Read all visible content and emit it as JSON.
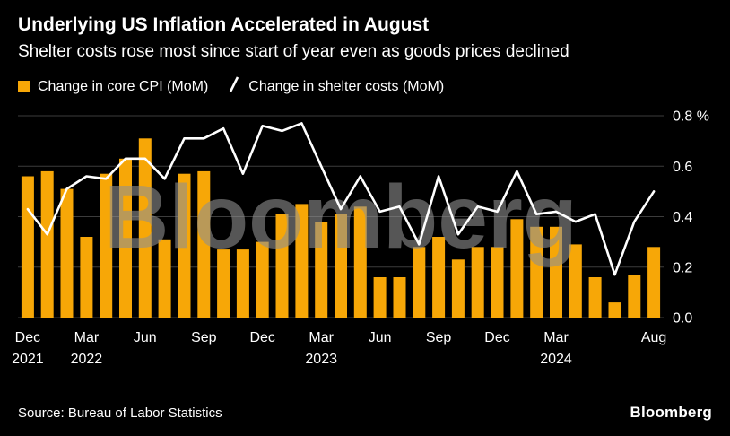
{
  "header": {
    "title": "Underlying US Inflation Accelerated in August",
    "subtitle": "Shelter costs rose most since start of year even as goods prices declined"
  },
  "legend": {
    "bars_label": "Change in core CPI (MoM)",
    "line_label": "Change in shelter costs (MoM)"
  },
  "watermark": "Bloomberg",
  "footer": {
    "source": "Source: Bureau of Labor Statistics",
    "brand": "Bloomberg"
  },
  "colors": {
    "background": "#000000",
    "bar": "#F7A707",
    "line": "#FFFFFF",
    "grid": "#3C3C3C",
    "text": "#FFFFFF",
    "watermark": "#8F8F8F"
  },
  "chart_data": {
    "type": "bar+line",
    "title": "Underlying US Inflation Accelerated in August",
    "x": [
      "Dec 2021",
      "Jan 2022",
      "Feb 2022",
      "Mar 2022",
      "Apr 2022",
      "May 2022",
      "Jun 2022",
      "Jul 2022",
      "Aug 2022",
      "Sep 2022",
      "Oct 2022",
      "Nov 2022",
      "Dec 2022",
      "Jan 2023",
      "Feb 2023",
      "Mar 2023",
      "Apr 2023",
      "May 2023",
      "Jun 2023",
      "Jul 2023",
      "Aug 2023",
      "Sep 2023",
      "Oct 2023",
      "Nov 2023",
      "Dec 2023",
      "Jan 2024",
      "Feb 2024",
      "Mar 2024",
      "Apr 2024",
      "May 2024",
      "Jun 2024",
      "Jul 2024",
      "Aug 2024"
    ],
    "series": [
      {
        "name": "Change in core CPI (MoM)",
        "type": "bar",
        "values": [
          0.56,
          0.58,
          0.51,
          0.32,
          0.57,
          0.63,
          0.71,
          0.31,
          0.57,
          0.58,
          0.27,
          0.27,
          0.3,
          0.41,
          0.45,
          0.38,
          0.41,
          0.44,
          0.16,
          0.16,
          0.28,
          0.32,
          0.23,
          0.28,
          0.28,
          0.39,
          0.36,
          0.36,
          0.29,
          0.16,
          0.06,
          0.17,
          0.28
        ]
      },
      {
        "name": "Change in shelter costs (MoM)",
        "type": "line",
        "values": [
          0.43,
          0.33,
          0.51,
          0.56,
          0.55,
          0.63,
          0.63,
          0.55,
          0.71,
          0.71,
          0.75,
          0.57,
          0.76,
          0.74,
          0.77,
          0.6,
          0.43,
          0.56,
          0.42,
          0.44,
          0.29,
          0.56,
          0.33,
          0.44,
          0.42,
          0.58,
          0.41,
          0.42,
          0.38,
          0.41,
          0.17,
          0.38,
          0.5
        ]
      }
    ],
    "ylim": [
      0,
      0.8
    ],
    "yticks": [
      0,
      0.2,
      0.4,
      0.6,
      0.8
    ],
    "ytick_labels": [
      "0.0",
      "0.2",
      "0.4",
      "0.6",
      "0.8 %"
    ],
    "xtick_positions": [
      0,
      3,
      6,
      9,
      12,
      15,
      18,
      21,
      24,
      27,
      32
    ],
    "xtick_labels": [
      [
        "Dec",
        "2021"
      ],
      [
        "Mar",
        "2022"
      ],
      [
        "Jun"
      ],
      [
        "Sep"
      ],
      [
        "Dec"
      ],
      [
        "Mar",
        "2023"
      ],
      [
        "Jun"
      ],
      [
        "Sep"
      ],
      [
        "Dec"
      ],
      [
        "Mar",
        "2024"
      ],
      [
        "Aug"
      ]
    ],
    "grid": true,
    "legend_position": "top-left",
    "y_axis_side": "right"
  }
}
